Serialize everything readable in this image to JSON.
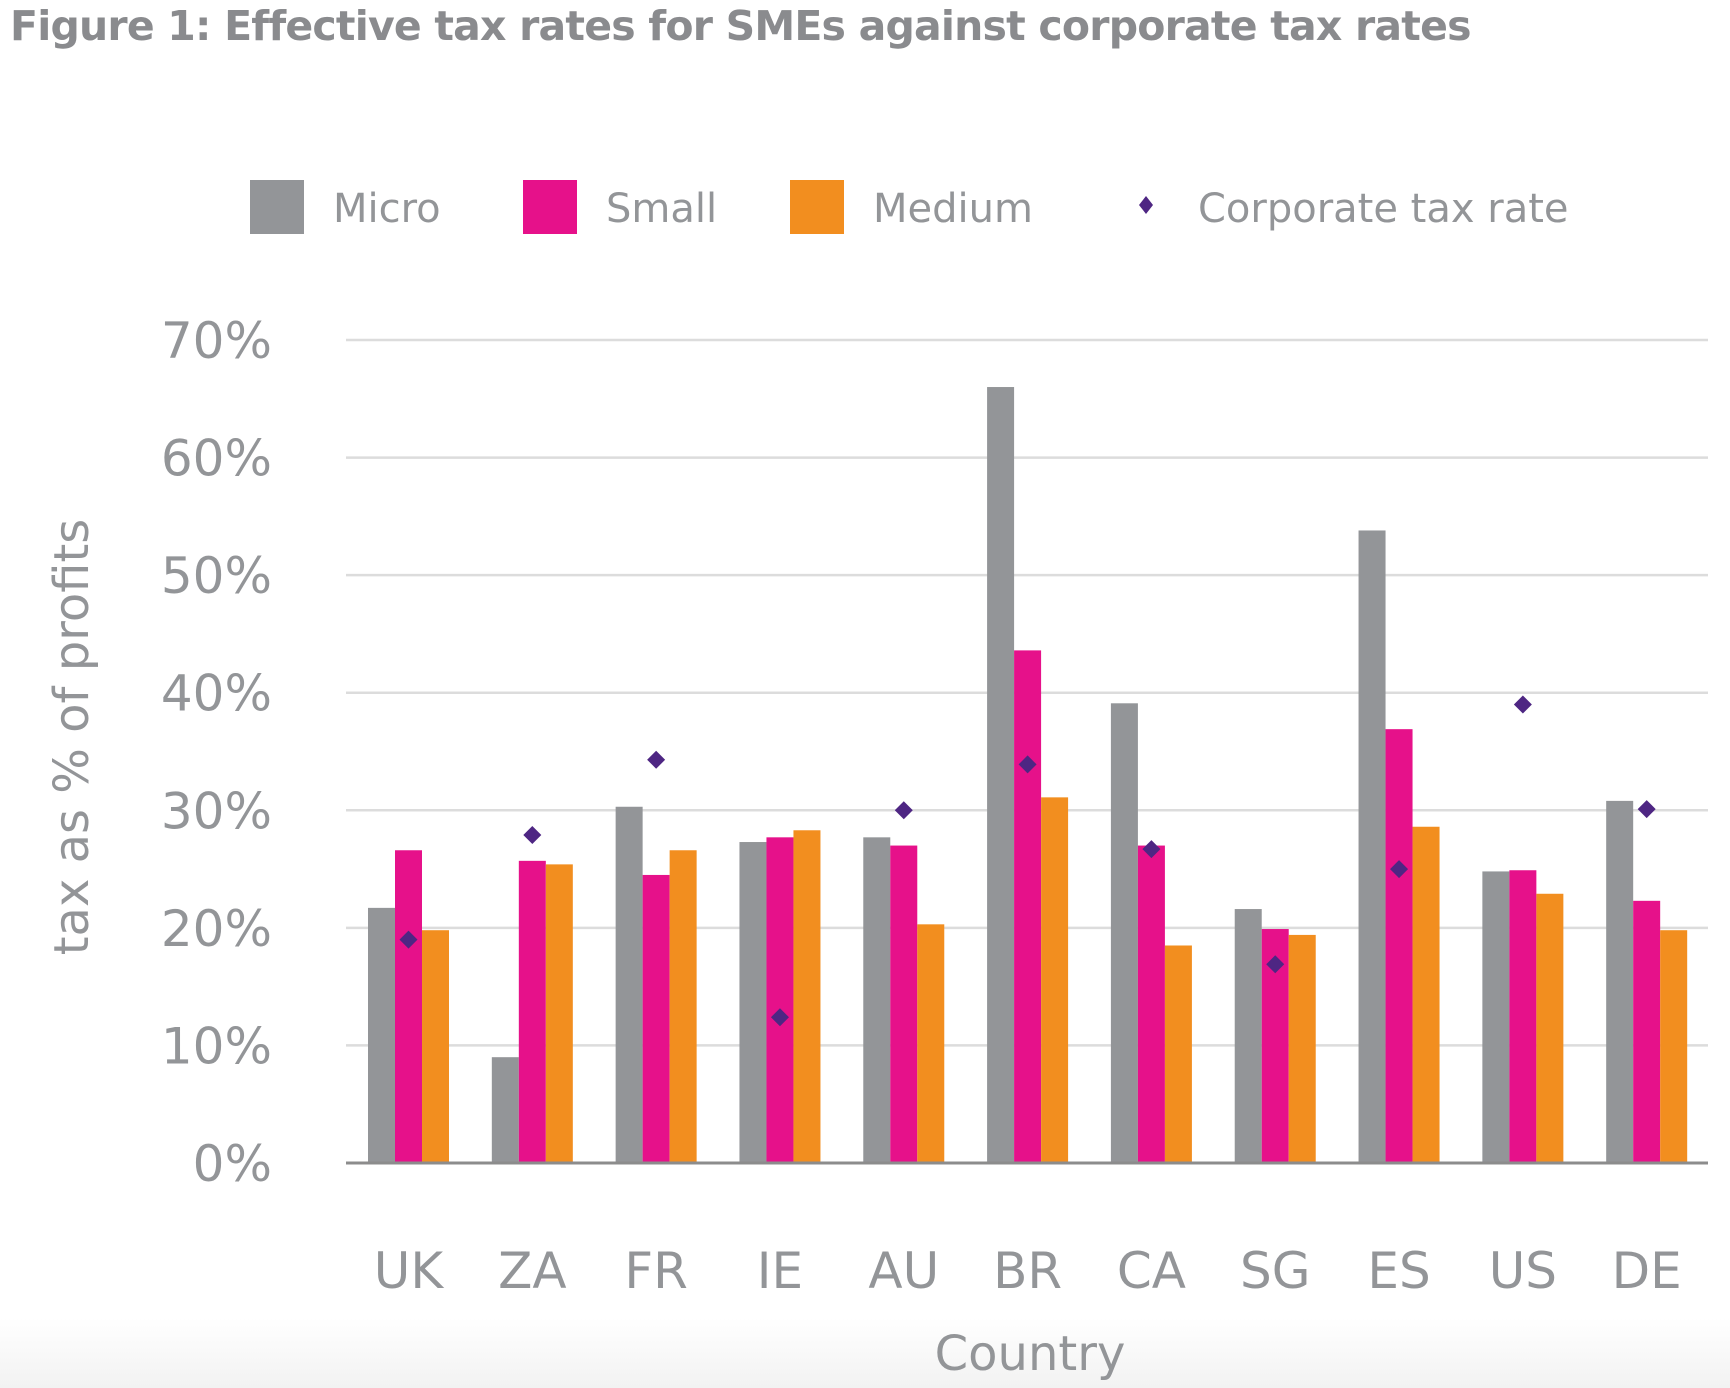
{
  "chart_data": {
    "type": "bar",
    "title": "Figure 1: Effective tax rates for SMEs against corporate tax rates",
    "xlabel": "Country",
    "ylabel": "tax as % of profits",
    "ylim": [
      0,
      70
    ],
    "yticks": [
      0,
      10,
      20,
      30,
      40,
      50,
      60,
      70
    ],
    "ytick_labels": [
      "0%",
      "10%",
      "20%",
      "30%",
      "40%",
      "50%",
      "60%",
      "70%"
    ],
    "grid": true,
    "legend_position": "top",
    "categories": [
      "UK",
      "ZA",
      "FR",
      "IE",
      "AU",
      "BR",
      "CA",
      "SG",
      "ES",
      "US",
      "DE"
    ],
    "series": [
      {
        "name": "Micro",
        "type": "bar",
        "color": "#939598",
        "values": [
          21.7,
          9.0,
          30.3,
          27.3,
          27.7,
          66.0,
          39.1,
          21.6,
          53.8,
          24.8,
          30.8
        ]
      },
      {
        "name": "Small",
        "type": "bar",
        "color": "#E6118A",
        "values": [
          26.6,
          25.7,
          24.5,
          27.7,
          27.0,
          43.6,
          27.0,
          19.9,
          36.9,
          24.9,
          22.3
        ]
      },
      {
        "name": "Medium",
        "type": "bar",
        "color": "#F28E1F",
        "values": [
          19.8,
          25.4,
          26.6,
          28.3,
          20.3,
          31.1,
          18.5,
          19.4,
          28.6,
          22.9,
          19.8
        ]
      },
      {
        "name": "Corporate tax rate",
        "type": "scatter",
        "marker": "diamond",
        "color": "#4E2683",
        "values": [
          19.0,
          27.9,
          34.3,
          12.4,
          30.0,
          33.9,
          26.7,
          16.9,
          25.0,
          39.0,
          30.1
        ]
      }
    ]
  },
  "colors": {
    "text": "#939598",
    "title": "#8a8b8e",
    "grid": "#dcdcdc",
    "axis": "#8c8c8c"
  }
}
